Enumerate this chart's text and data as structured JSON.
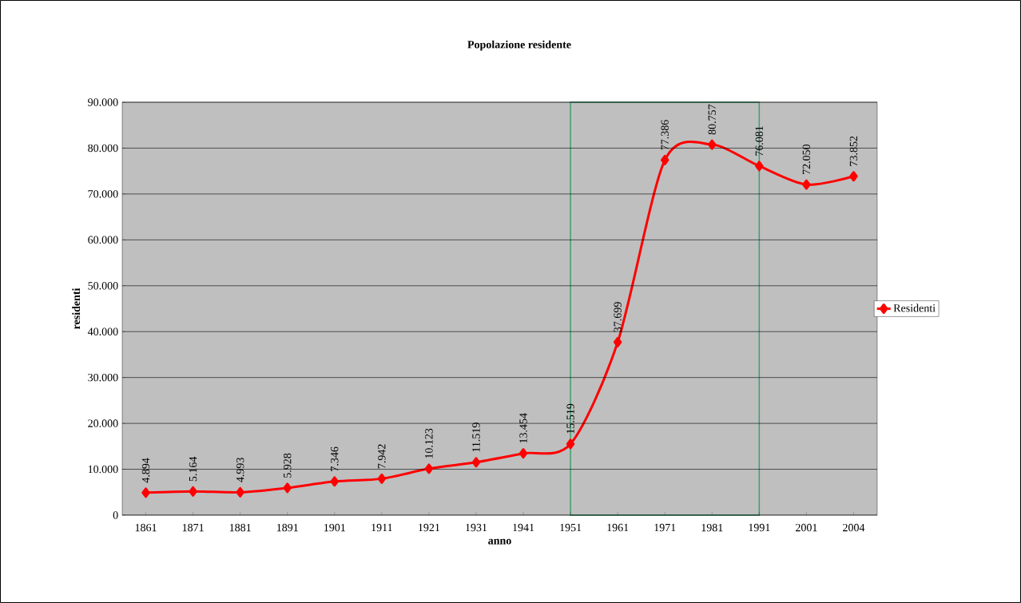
{
  "chart_data": {
    "type": "line",
    "title": "Popolazione residente",
    "xlabel": "anno",
    "ylabel": "residenti",
    "categories": [
      "1861",
      "1871",
      "1881",
      "1891",
      "1901",
      "1911",
      "1921",
      "1931",
      "1941",
      "1951",
      "1961",
      "1971",
      "1981",
      "1991",
      "2001",
      "2004"
    ],
    "series": [
      {
        "name": "Residenti",
        "color": "#ff0000",
        "values": [
          4894,
          5164,
          4993,
          5928,
          7346,
          7942,
          10123,
          11519,
          13454,
          15519,
          37699,
          77386,
          80757,
          76081,
          72050,
          73852
        ],
        "value_labels": [
          "4.894",
          "5.164",
          "4.993",
          "5.928",
          "7.346",
          "7.942",
          "10.123",
          "11.519",
          "13.454",
          "15.519",
          "37.699",
          "77.386",
          "80.757",
          "76.081",
          "72.050",
          "73.852"
        ]
      }
    ],
    "ylim": [
      0,
      90000
    ],
    "yticks": [
      0,
      {
        "value": 10000,
        "label": "10.000"
      },
      {
        "value": 20000,
        "label": "20.000"
      },
      {
        "value": 30000,
        "label": "30.000"
      },
      {
        "value": 40000,
        "label": "40.000"
      },
      {
        "value": 50000,
        "label": "50.000"
      },
      {
        "value": 60000,
        "label": "60.000"
      },
      {
        "value": 70000,
        "label": "70.000"
      },
      {
        "value": 80000,
        "label": "80.000"
      },
      {
        "value": 90000,
        "label": "90.000"
      }
    ],
    "bands": [
      {
        "axis": "x",
        "from": "1951",
        "to": "1991",
        "color": "#3f9f6f"
      }
    ],
    "grid": "y",
    "legend": "right",
    "marker": "diamond",
    "line_style": "solid"
  }
}
